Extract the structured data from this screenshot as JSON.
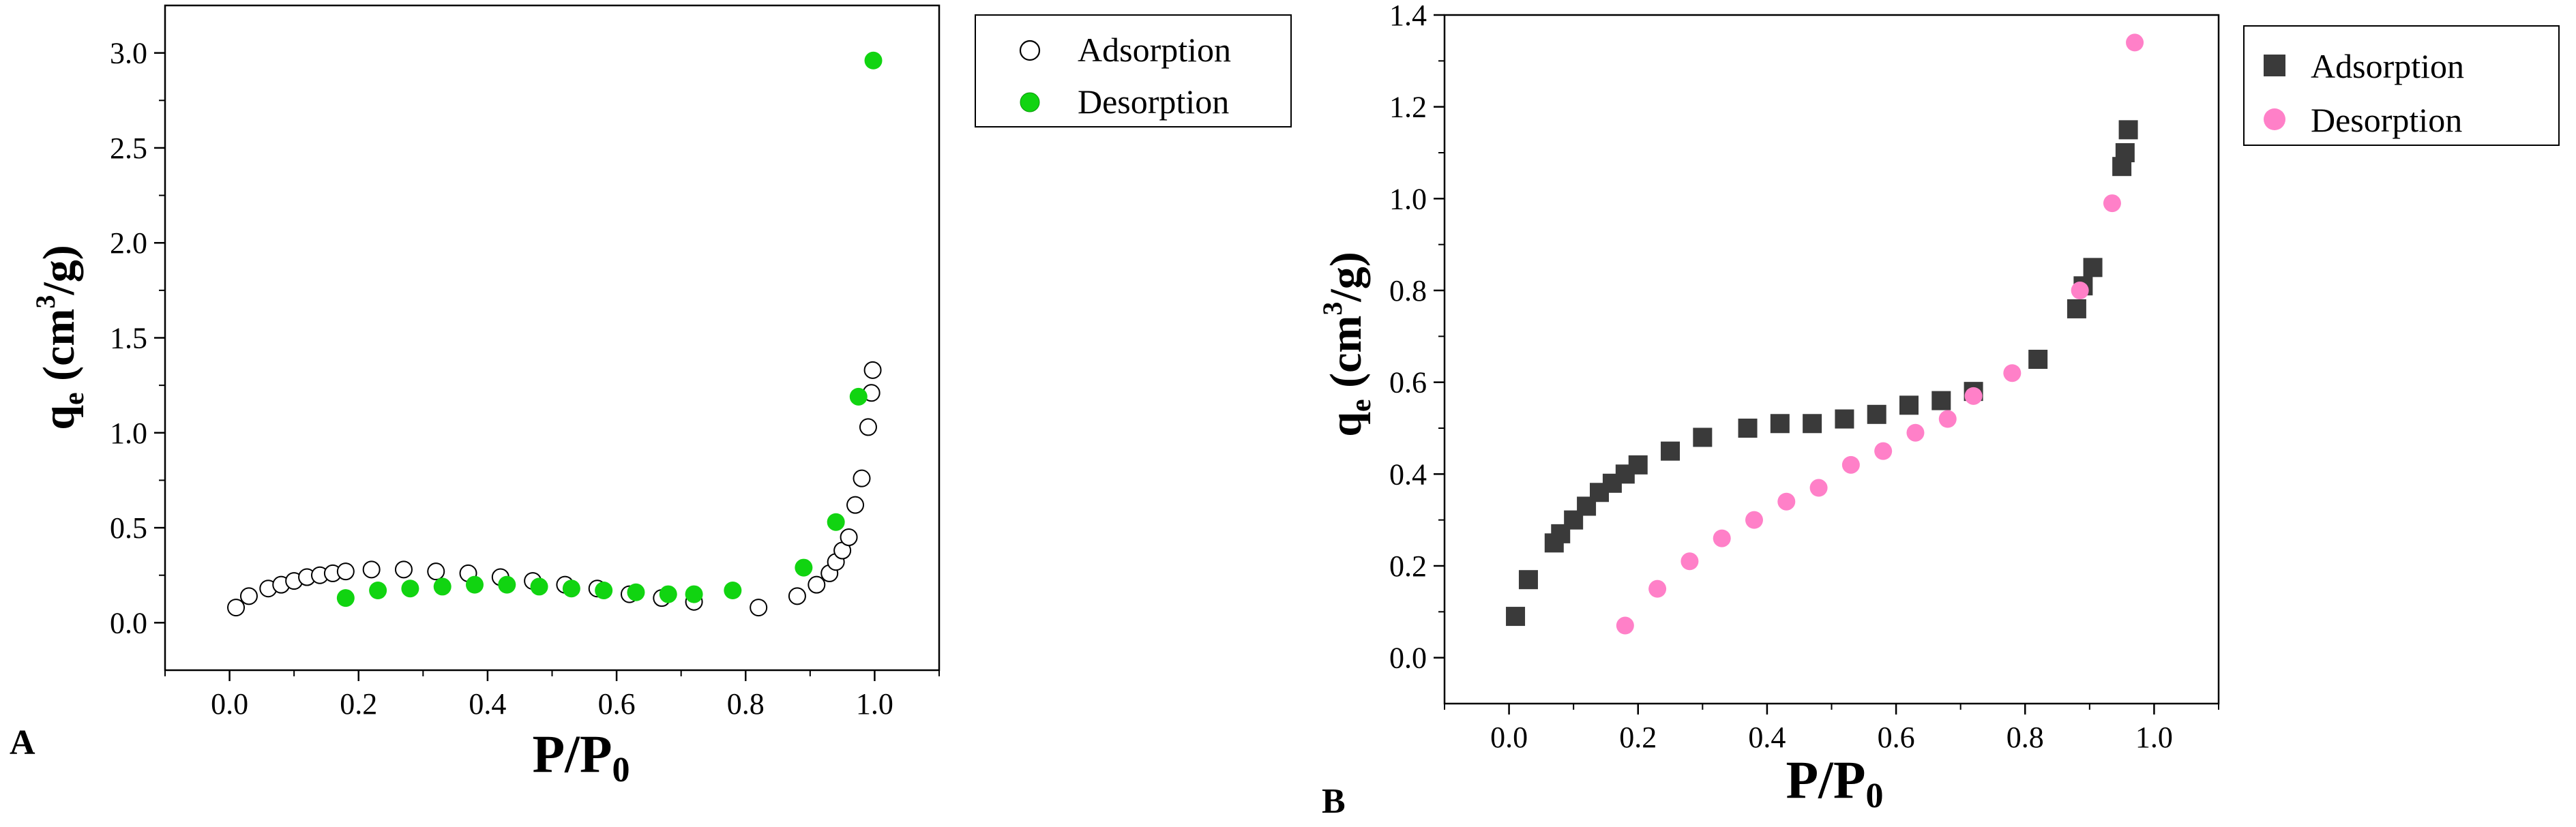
{
  "chart_data": [
    {
      "panel": "A",
      "type": "scatter",
      "xlabel_main": "P/P",
      "xlabel_sub": "0",
      "ylabel_main": "q",
      "ylabel_sub": "e",
      "ylabel_unit_pre": " (cm",
      "ylabel_unit_sup": "3",
      "ylabel_unit_post": "/g)",
      "xlim": [
        -0.1,
        1.1
      ],
      "ylim": [
        -0.25,
        3.25
      ],
      "xticks": [
        0.0,
        0.2,
        0.4,
        0.6,
        0.8,
        1.0
      ],
      "xtick_labels": [
        "0.0",
        "0.2",
        "0.4",
        "0.6",
        "0.8",
        "1.0"
      ],
      "yticks": [
        0.0,
        0.5,
        1.0,
        1.5,
        2.0,
        2.5,
        3.0
      ],
      "ytick_labels": [
        "0.0",
        "0.5",
        "1.0",
        "1.5",
        "2.0",
        "2.5",
        "3.0"
      ],
      "legend_position": "outside-right-top",
      "series": [
        {
          "name": "Adsorption",
          "marker": "open-circle",
          "color": "#000000",
          "points": [
            [
              0.01,
              0.08
            ],
            [
              0.03,
              0.14
            ],
            [
              0.06,
              0.18
            ],
            [
              0.08,
              0.2
            ],
            [
              0.1,
              0.22
            ],
            [
              0.12,
              0.24
            ],
            [
              0.14,
              0.25
            ],
            [
              0.16,
              0.26
            ],
            [
              0.18,
              0.27
            ],
            [
              0.22,
              0.28
            ],
            [
              0.27,
              0.28
            ],
            [
              0.32,
              0.27
            ],
            [
              0.37,
              0.26
            ],
            [
              0.42,
              0.24
            ],
            [
              0.47,
              0.22
            ],
            [
              0.52,
              0.2
            ],
            [
              0.57,
              0.18
            ],
            [
              0.62,
              0.15
            ],
            [
              0.67,
              0.13
            ],
            [
              0.72,
              0.11
            ],
            [
              0.82,
              0.08
            ],
            [
              0.88,
              0.14
            ],
            [
              0.91,
              0.2
            ],
            [
              0.93,
              0.26
            ],
            [
              0.94,
              0.32
            ],
            [
              0.95,
              0.38
            ],
            [
              0.96,
              0.45
            ],
            [
              0.97,
              0.62
            ],
            [
              0.98,
              0.76
            ],
            [
              0.99,
              1.03
            ],
            [
              0.995,
              1.21
            ],
            [
              0.997,
              1.33
            ]
          ]
        },
        {
          "name": "Desorption",
          "marker": "filled-circle",
          "color": "#11d411",
          "points": [
            [
              0.18,
              0.13
            ],
            [
              0.23,
              0.17
            ],
            [
              0.28,
              0.18
            ],
            [
              0.33,
              0.19
            ],
            [
              0.38,
              0.2
            ],
            [
              0.43,
              0.2
            ],
            [
              0.48,
              0.19
            ],
            [
              0.53,
              0.18
            ],
            [
              0.58,
              0.17
            ],
            [
              0.63,
              0.16
            ],
            [
              0.68,
              0.15
            ],
            [
              0.72,
              0.15
            ],
            [
              0.78,
              0.17
            ],
            [
              0.89,
              0.29
            ],
            [
              0.94,
              0.53
            ],
            [
              0.975,
              1.19
            ],
            [
              0.998,
              2.96
            ]
          ]
        }
      ]
    },
    {
      "panel": "B",
      "type": "scatter",
      "xlabel_main": "P/P",
      "xlabel_sub": "0",
      "ylabel_main": "q",
      "ylabel_sub": "e",
      "ylabel_unit_pre": " (cm",
      "ylabel_unit_sup": "3",
      "ylabel_unit_post": "/g)",
      "xlim": [
        -0.1,
        1.1
      ],
      "ylim": [
        -0.1,
        1.4
      ],
      "xticks": [
        0.0,
        0.2,
        0.4,
        0.6,
        0.8,
        1.0
      ],
      "xtick_labels": [
        "0.0",
        "0.2",
        "0.4",
        "0.6",
        "0.8",
        "1.0"
      ],
      "yticks": [
        0.0,
        0.2,
        0.4,
        0.6,
        0.8,
        1.0,
        1.2,
        1.4
      ],
      "ytick_labels": [
        "0.0",
        "0.2",
        "0.4",
        "0.6",
        "0.8",
        "1.0",
        "1.2",
        "1.4"
      ],
      "legend_position": "outside-right-top",
      "series": [
        {
          "name": "Adsorption",
          "marker": "filled-square",
          "color": "#3a3a3a",
          "points": [
            [
              0.01,
              0.09
            ],
            [
              0.03,
              0.17
            ],
            [
              0.07,
              0.25
            ],
            [
              0.08,
              0.27
            ],
            [
              0.1,
              0.3
            ],
            [
              0.12,
              0.33
            ],
            [
              0.14,
              0.36
            ],
            [
              0.16,
              0.38
            ],
            [
              0.18,
              0.4
            ],
            [
              0.2,
              0.42
            ],
            [
              0.25,
              0.45
            ],
            [
              0.3,
              0.48
            ],
            [
              0.37,
              0.5
            ],
            [
              0.42,
              0.51
            ],
            [
              0.47,
              0.51
            ],
            [
              0.52,
              0.52
            ],
            [
              0.57,
              0.53
            ],
            [
              0.62,
              0.55
            ],
            [
              0.67,
              0.56
            ],
            [
              0.72,
              0.58
            ],
            [
              0.82,
              0.65
            ],
            [
              0.88,
              0.76
            ],
            [
              0.89,
              0.81
            ],
            [
              0.905,
              0.85
            ],
            [
              0.95,
              1.07
            ],
            [
              0.955,
              1.1
            ],
            [
              0.96,
              1.15
            ]
          ]
        },
        {
          "name": "Desorption",
          "marker": "filled-circle",
          "color": "#ff80c8",
          "points": [
            [
              0.18,
              0.07
            ],
            [
              0.23,
              0.15
            ],
            [
              0.28,
              0.21
            ],
            [
              0.33,
              0.26
            ],
            [
              0.38,
              0.3
            ],
            [
              0.43,
              0.34
            ],
            [
              0.48,
              0.37
            ],
            [
              0.53,
              0.42
            ],
            [
              0.58,
              0.45
            ],
            [
              0.63,
              0.49
            ],
            [
              0.68,
              0.52
            ],
            [
              0.72,
              0.57
            ],
            [
              0.78,
              0.62
            ],
            [
              0.885,
              0.8
            ],
            [
              0.935,
              0.99
            ],
            [
              0.97,
              1.34
            ]
          ]
        }
      ]
    }
  ]
}
